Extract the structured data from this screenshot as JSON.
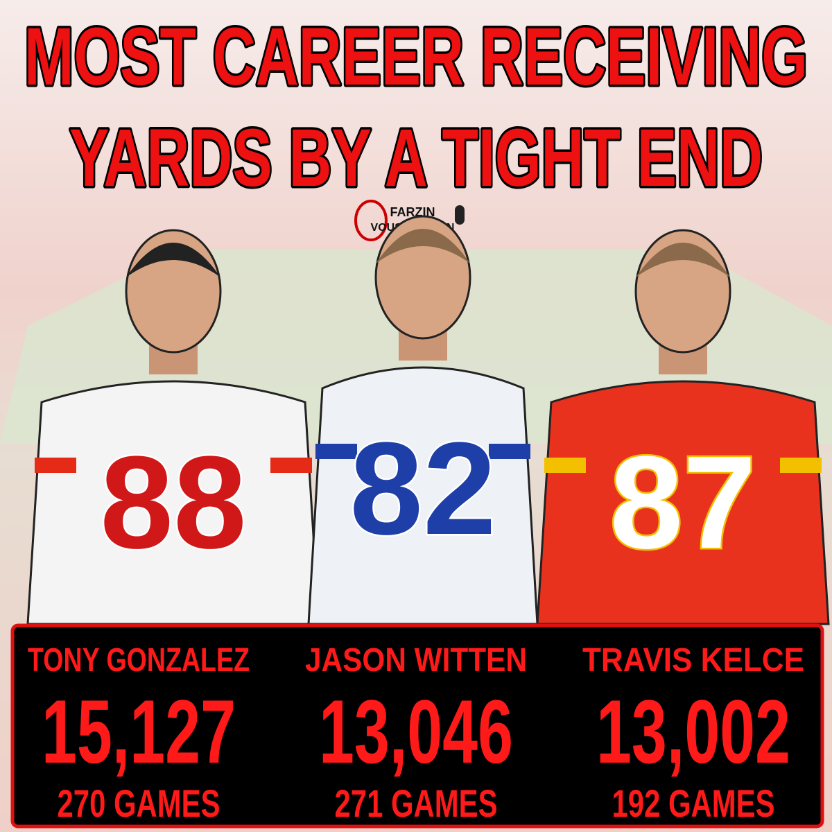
{
  "header": {
    "title_lines": [
      "MOST CAREER RECEIVING",
      "YARDS BY A TIGHT END"
    ],
    "logo": {
      "top": "FARZIN",
      "bottom": "VOUSOUGHIAN"
    }
  },
  "players": [
    {
      "name": "TONY GONZALEZ",
      "yards": "15,127",
      "games": "270 GAMES",
      "jersey_number": "88"
    },
    {
      "name": "JASON WITTEN",
      "yards": "13,046",
      "games": "271 GAMES",
      "jersey_number": "82"
    },
    {
      "name": "TRAVIS KELCE",
      "yards": "13,002",
      "games": "192 GAMES",
      "jersey_number": "87"
    }
  ]
}
